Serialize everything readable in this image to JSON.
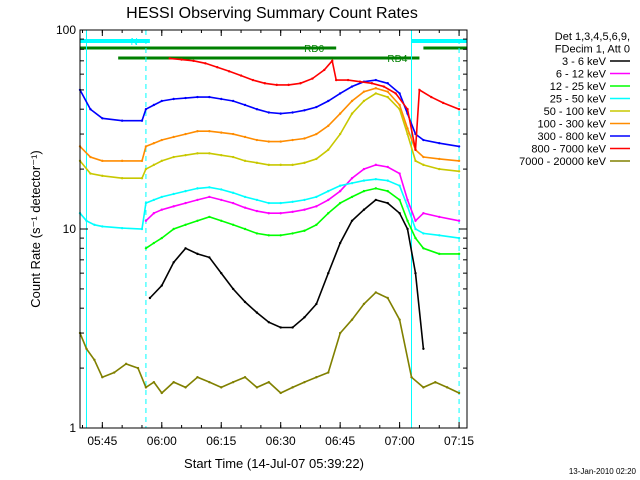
{
  "chart_data": {
    "type": "line",
    "title": "HESSI Observing Summary Count Rates",
    "xlabel": "Start Time (14-Jul-07 05:39:22)",
    "ylabel": "Count Rate (s⁻¹ detector⁻¹)",
    "y_scale": "log",
    "ylim": [
      1,
      100
    ],
    "xlim": [
      "05:39:22",
      "07:17:00"
    ],
    "x_ticks": [
      "05:45",
      "06:00",
      "06:15",
      "06:30",
      "06:45",
      "07:00",
      "07:15"
    ],
    "y_ticks": [
      "1",
      "10",
      "100"
    ],
    "legend_header": [
      "Det 1,3,4,5,6,9,",
      "FDecim 1, Att 0"
    ],
    "legend_position": "right, outside plot",
    "series": [
      {
        "name": "3 - 6 keV",
        "color": "#000000",
        "x": [
          "05:41",
          "05:48",
          "05:56",
          "05:57",
          "06:00",
          "06:03",
          "06:06",
          "06:09",
          "06:12",
          "06:15",
          "06:18",
          "06:21",
          "06:24",
          "06:27",
          "06:30",
          "06:33",
          "06:36",
          "06:39",
          "06:42",
          "06:45",
          "06:48",
          "06:51",
          "06:54",
          "06:57",
          "07:00",
          "07:02",
          "07:04",
          "07:06",
          "07:08"
        ],
        "y": [
          null,
          null,
          null,
          4.5,
          5.2,
          6.8,
          8.0,
          7.5,
          7.2,
          6.0,
          5.0,
          4.3,
          3.8,
          3.4,
          3.2,
          3.2,
          3.6,
          4.2,
          6.0,
          8.5,
          11,
          12.5,
          14,
          13.5,
          12,
          10,
          6,
          2.5,
          null
        ]
      },
      {
        "name": "6 - 12 keV",
        "color": "#ff00ff",
        "x": [
          "05:56",
          "05:58",
          "06:00",
          "06:03",
          "06:06",
          "06:09",
          "06:12",
          "06:15",
          "06:18",
          "06:21",
          "06:24",
          "06:27",
          "06:30",
          "06:33",
          "06:36",
          "06:39",
          "06:42",
          "06:45",
          "06:48",
          "06:51",
          "06:54",
          "06:57",
          "07:00",
          "07:02",
          "07:04",
          "07:06",
          "07:10",
          "07:15"
        ],
        "y": [
          11,
          12,
          12.5,
          13,
          13.5,
          14,
          14.5,
          14,
          13.5,
          12.8,
          12.3,
          12,
          12,
          12.2,
          12.5,
          13,
          14,
          15.5,
          18,
          20,
          21,
          20.5,
          19,
          14,
          11,
          12,
          11.5,
          11
        ]
      },
      {
        "name": "12 - 25 keV",
        "color": "#00ff00",
        "x": [
          "05:56",
          "05:58",
          "06:00",
          "06:03",
          "06:06",
          "06:09",
          "06:12",
          "06:15",
          "06:18",
          "06:21",
          "06:24",
          "06:27",
          "06:30",
          "06:33",
          "06:36",
          "06:39",
          "06:42",
          "06:45",
          "06:48",
          "06:51",
          "06:54",
          "06:57",
          "07:00",
          "07:02",
          "07:04",
          "07:06",
          "07:10",
          "07:15"
        ],
        "y": [
          8,
          8.5,
          9,
          10,
          10.5,
          11,
          11.5,
          11,
          10.5,
          10,
          9.5,
          9.3,
          9.3,
          9.5,
          9.8,
          10.5,
          12,
          13.5,
          14.5,
          15.5,
          16,
          15.5,
          14,
          11,
          9,
          8,
          7.5,
          7.5
        ]
      },
      {
        "name": "25 - 50 keV",
        "color": "#00ffff",
        "x": [
          "05:39:22",
          "05:41",
          "05:43",
          "05:45",
          "05:50",
          "05:55",
          "05:56",
          "05:58",
          "06:00",
          "06:03",
          "06:06",
          "06:09",
          "06:12",
          "06:15",
          "06:18",
          "06:21",
          "06:24",
          "06:27",
          "06:30",
          "06:33",
          "06:36",
          "06:39",
          "06:42",
          "06:45",
          "06:48",
          "06:51",
          "06:54",
          "06:57",
          "07:00",
          "07:02",
          "07:04",
          "07:06",
          "07:10",
          "07:15"
        ],
        "y": [
          12,
          11,
          10.5,
          10.3,
          10.1,
          10,
          13.5,
          14,
          14.5,
          15,
          15.5,
          16,
          16.2,
          15.8,
          15.2,
          14.5,
          14,
          13.5,
          13.5,
          13.7,
          14,
          14.5,
          15.5,
          16.5,
          17,
          17.5,
          17.8,
          17.5,
          16.5,
          13,
          10,
          9.5,
          9.3,
          9
        ]
      },
      {
        "name": "50 - 100 keV",
        "color": "#c8c800",
        "x": [
          "05:39:22",
          "05:42",
          "05:45",
          "05:50",
          "05:55",
          "05:56",
          "05:58",
          "06:00",
          "06:03",
          "06:06",
          "06:09",
          "06:12",
          "06:15",
          "06:18",
          "06:21",
          "06:24",
          "06:27",
          "06:30",
          "06:33",
          "06:36",
          "06:39",
          "06:42",
          "06:45",
          "06:48",
          "06:51",
          "06:54",
          "06:57",
          "07:00",
          "07:02",
          "07:04",
          "07:06",
          "07:10",
          "07:15"
        ],
        "y": [
          22,
          19,
          18.5,
          18,
          18,
          20,
          21,
          22,
          23,
          23.5,
          24,
          24,
          23.5,
          23,
          22,
          21.5,
          21,
          21,
          21,
          21.5,
          22.5,
          25,
          30,
          38,
          44,
          48,
          46,
          40,
          30,
          22,
          21,
          20,
          19.5
        ]
      },
      {
        "name": "100 - 300 keV",
        "color": "#ff8c00",
        "x": [
          "05:39:22",
          "05:42",
          "05:45",
          "05:50",
          "05:55",
          "05:56",
          "05:58",
          "06:00",
          "06:03",
          "06:06",
          "06:09",
          "06:12",
          "06:15",
          "06:18",
          "06:21",
          "06:24",
          "06:27",
          "06:30",
          "06:33",
          "06:36",
          "06:39",
          "06:42",
          "06:45",
          "06:48",
          "06:51",
          "06:54",
          "06:57",
          "07:00",
          "07:02",
          "07:04",
          "07:06",
          "07:10",
          "07:15"
        ],
        "y": [
          26,
          23,
          22,
          22,
          22,
          26,
          27,
          28,
          29,
          30,
          31,
          31,
          30.5,
          30,
          29,
          28,
          27.5,
          27.5,
          28,
          28.5,
          30,
          33,
          38,
          44,
          49,
          51,
          49,
          42,
          32,
          25,
          23,
          22.5,
          22
        ]
      },
      {
        "name": "300 - 800 keV",
        "color": "#0000ff",
        "x": [
          "05:39:22",
          "05:42",
          "05:45",
          "05:50",
          "05:55",
          "05:56",
          "05:58",
          "06:00",
          "06:03",
          "06:06",
          "06:09",
          "06:12",
          "06:15",
          "06:18",
          "06:21",
          "06:24",
          "06:27",
          "06:30",
          "06:33",
          "06:36",
          "06:39",
          "06:42",
          "06:45",
          "06:48",
          "06:51",
          "06:54",
          "06:57",
          "07:00",
          "07:02",
          "07:04",
          "07:06",
          "07:10",
          "07:15"
        ],
        "y": [
          50,
          40,
          36,
          35,
          35,
          40,
          42,
          44,
          45,
          45.5,
          46,
          46,
          45,
          44,
          42,
          40,
          38.5,
          38,
          38.5,
          39.5,
          41,
          44,
          48,
          52,
          55,
          56,
          54,
          48,
          38,
          30,
          28,
          27,
          26
        ]
      },
      {
        "name": "800 - 7000 keV",
        "color": "#ff0000",
        "x": [
          "05:39:22",
          "05:41",
          "05:43",
          "05:45",
          "05:50",
          "05:55",
          "06:00",
          "06:02",
          "06:05",
          "06:08",
          "06:11",
          "06:14",
          "06:17",
          "06:20",
          "06:23",
          "06:26",
          "06:29",
          "06:32",
          "06:35",
          "06:38",
          "06:41",
          "06:43",
          "06:44",
          "06:47",
          "06:50",
          "06:53",
          "06:56",
          "06:59",
          "07:02",
          "07:04",
          "07:05",
          "07:08",
          "07:11",
          "07:15"
        ],
        "y": [
          null,
          null,
          null,
          null,
          null,
          null,
          null,
          72,
          71,
          70,
          68,
          65,
          62,
          59,
          56,
          54,
          53,
          53,
          54,
          57,
          63,
          70,
          56,
          56,
          55,
          54,
          52,
          48,
          40,
          25,
          50,
          46,
          43,
          40
        ]
      },
      {
        "name": "7000 - 20000 keV",
        "color": "#808000",
        "x": [
          "05:39:22",
          "05:41",
          "05:43",
          "05:45",
          "05:48",
          "05:51",
          "05:54",
          "05:56",
          "05:58",
          "06:00",
          "06:03",
          "06:06",
          "06:09",
          "06:12",
          "06:15",
          "06:18",
          "06:21",
          "06:24",
          "06:27",
          "06:30",
          "06:33",
          "06:36",
          "06:39",
          "06:42",
          "06:45",
          "06:48",
          "06:51",
          "06:54",
          "06:57",
          "07:00",
          "07:03",
          "07:06",
          "07:09",
          "07:12",
          "07:15"
        ],
        "y": [
          3.0,
          2.5,
          2.2,
          1.8,
          1.9,
          2.1,
          2.0,
          1.6,
          1.7,
          1.5,
          1.7,
          1.6,
          1.8,
          1.7,
          1.6,
          1.7,
          1.8,
          1.6,
          1.7,
          1.5,
          1.6,
          1.7,
          1.8,
          1.9,
          3.0,
          3.5,
          4.2,
          4.8,
          4.5,
          3.5,
          1.8,
          1.6,
          1.7,
          1.6,
          1.5
        ]
      }
    ],
    "annotations": {
      "bars": [
        {
          "label": "N",
          "color": "#00ffff",
          "start": "05:39:22",
          "end": "05:57"
        },
        {
          "label": "",
          "color": "#00ffff",
          "start": "07:03",
          "end": "07:17"
        },
        {
          "label": "RD0",
          "color": "#008000",
          "start": "05:39:22",
          "end": "06:44"
        },
        {
          "label": "",
          "color": "#008000",
          "start": "07:06",
          "end": "07:17"
        },
        {
          "label": "RD4",
          "color": "#008000",
          "start": "05:49",
          "end": "07:05"
        }
      ],
      "vlines_dashed": [
        "05:56",
        "07:15"
      ],
      "vlines_solid": [
        "05:41",
        "07:03"
      ]
    },
    "timestamp": "13-Jan-2010 02:20"
  }
}
